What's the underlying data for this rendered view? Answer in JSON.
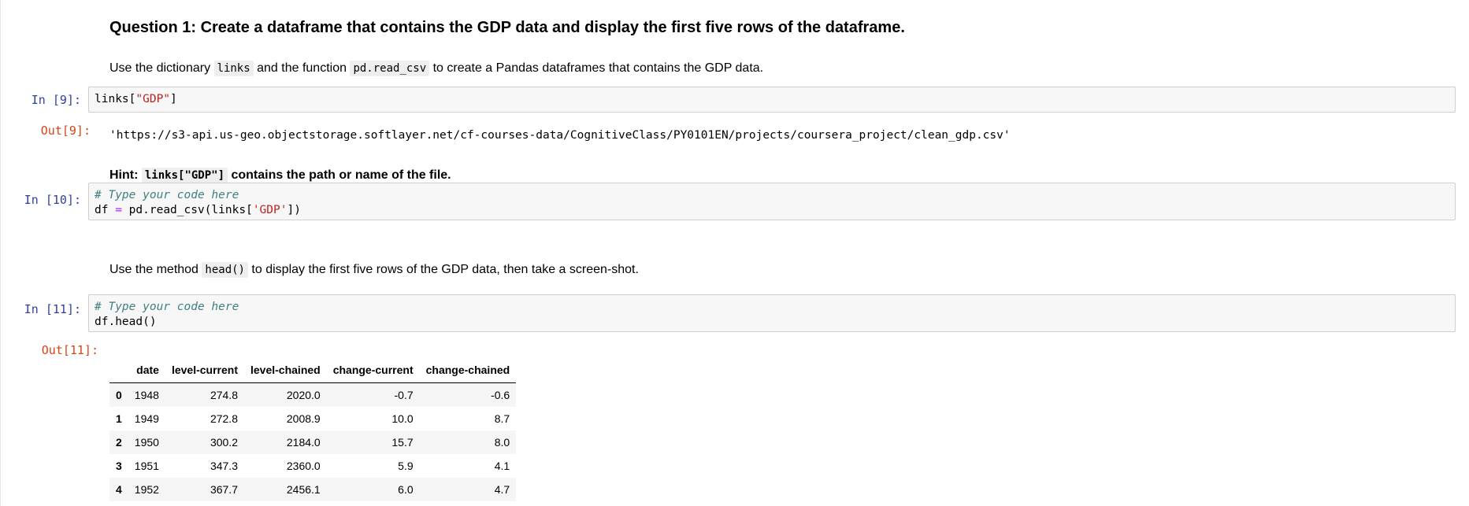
{
  "markdown": {
    "question_title": "Question 1: Create a dataframe that contains the GDP data and display the first five rows of the dataframe.",
    "instr1": {
      "prefix": "Use the dictionary ",
      "code1": "links",
      "middle": " and the function ",
      "code2": "pd.read_csv",
      "suffix": " to create a Pandas dataframes that contains the GDP data."
    },
    "hint": {
      "label": "Hint: ",
      "code": "links[\"GDP\"]",
      "text": " contains the path or name of the file."
    },
    "instr2": {
      "prefix": "Use the method ",
      "code": "head()",
      "suffix": " to display the first five rows of the GDP data, then take a screen-shot."
    }
  },
  "cells": {
    "cell9": {
      "in_prompt": "In [9]:",
      "code_var": "links",
      "code_open": "[",
      "code_str": "\"GDP\"",
      "code_close": "]",
      "out_prompt": "Out[9]:",
      "output": "'https://s3-api.us-geo.objectstorage.softlayer.net/cf-courses-data/CognitiveClass/PY0101EN/projects/coursera_project/clean_gdp.csv'"
    },
    "cell10": {
      "in_prompt": "In [10]:",
      "comment": "# Type your code here",
      "line2_a": "df ",
      "line2_op": "=",
      "line2_b": " pd.read_csv(links[",
      "line2_str": "'GDP'",
      "line2_c": "])"
    },
    "cell11": {
      "in_prompt": "In [11]:",
      "comment": "# Type your code here",
      "line2": "df.head()",
      "out_prompt": "Out[11]:"
    }
  },
  "dataframe": {
    "columns": [
      "",
      "date",
      "level-current",
      "level-chained",
      "change-current",
      "change-chained"
    ],
    "rows": [
      [
        "0",
        "1948",
        "274.8",
        "2020.0",
        "-0.7",
        "-0.6"
      ],
      [
        "1",
        "1949",
        "272.8",
        "2008.9",
        "10.0",
        "8.7"
      ],
      [
        "2",
        "1950",
        "300.2",
        "2184.0",
        "15.7",
        "8.0"
      ],
      [
        "3",
        "1951",
        "347.3",
        "2360.0",
        "5.9",
        "4.1"
      ],
      [
        "4",
        "1952",
        "367.7",
        "2456.1",
        "6.0",
        "4.7"
      ]
    ]
  }
}
